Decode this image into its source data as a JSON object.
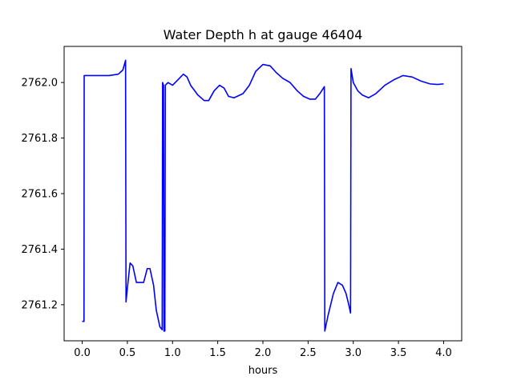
{
  "chart_data": {
    "type": "line",
    "title": "Water Depth h at gauge 46404",
    "xlabel": "hours",
    "ylabel": "",
    "xlim": [
      -0.2,
      4.2
    ],
    "ylim": [
      2761.07,
      2762.13
    ],
    "x_ticks": [
      0.0,
      0.5,
      1.0,
      1.5,
      2.0,
      2.5,
      3.0,
      3.5,
      4.0
    ],
    "x_tick_labels": [
      "0.0",
      "0.5",
      "1.0",
      "1.5",
      "2.0",
      "2.5",
      "3.0",
      "3.5",
      "4.0"
    ],
    "y_ticks": [
      2761.2,
      2761.4,
      2761.6,
      2761.8,
      2762.0
    ],
    "y_tick_labels": [
      "2761.2",
      "2761.4",
      "2761.6",
      "2761.8",
      "2762.0"
    ],
    "grid": false,
    "series": [
      {
        "name": "",
        "color": "#0000ff",
        "points": [
          [
            0.0,
            2761.14
          ],
          [
            0.02,
            2761.14
          ],
          [
            0.022,
            2762.025
          ],
          [
            0.1,
            2762.025
          ],
          [
            0.2,
            2762.025
          ],
          [
            0.3,
            2762.025
          ],
          [
            0.4,
            2762.03
          ],
          [
            0.45,
            2762.045
          ],
          [
            0.48,
            2762.08
          ],
          [
            0.485,
            2761.21
          ],
          [
            0.5,
            2761.26
          ],
          [
            0.53,
            2761.35
          ],
          [
            0.56,
            2761.34
          ],
          [
            0.6,
            2761.28
          ],
          [
            0.64,
            2761.28
          ],
          [
            0.68,
            2761.28
          ],
          [
            0.72,
            2761.33
          ],
          [
            0.75,
            2761.33
          ],
          [
            0.79,
            2761.27
          ],
          [
            0.82,
            2761.18
          ],
          [
            0.86,
            2761.12
          ],
          [
            0.885,
            2761.11
          ],
          [
            0.89,
            2762.0
          ],
          [
            0.9,
            2761.99
          ],
          [
            0.905,
            2761.105
          ],
          [
            0.915,
            2761.105
          ],
          [
            0.92,
            2761.99
          ],
          [
            0.95,
            2762.0
          ],
          [
            1.0,
            2761.99
          ],
          [
            1.06,
            2762.01
          ],
          [
            1.12,
            2762.03
          ],
          [
            1.16,
            2762.02
          ],
          [
            1.2,
            2761.99
          ],
          [
            1.28,
            2761.955
          ],
          [
            1.35,
            2761.935
          ],
          [
            1.4,
            2761.935
          ],
          [
            1.46,
            2761.97
          ],
          [
            1.52,
            2761.99
          ],
          [
            1.57,
            2761.98
          ],
          [
            1.62,
            2761.95
          ],
          [
            1.68,
            2761.945
          ],
          [
            1.78,
            2761.96
          ],
          [
            1.85,
            2761.99
          ],
          [
            1.92,
            2762.04
          ],
          [
            2.0,
            2762.065
          ],
          [
            2.08,
            2762.06
          ],
          [
            2.15,
            2762.035
          ],
          [
            2.22,
            2762.015
          ],
          [
            2.3,
            2762.0
          ],
          [
            2.38,
            2761.97
          ],
          [
            2.45,
            2761.95
          ],
          [
            2.52,
            2761.94
          ],
          [
            2.58,
            2761.94
          ],
          [
            2.63,
            2761.96
          ],
          [
            2.68,
            2761.985
          ],
          [
            2.685,
            2761.105
          ],
          [
            2.72,
            2761.16
          ],
          [
            2.78,
            2761.24
          ],
          [
            2.83,
            2761.28
          ],
          [
            2.88,
            2761.27
          ],
          [
            2.92,
            2761.24
          ],
          [
            2.95,
            2761.2
          ],
          [
            2.97,
            2761.17
          ],
          [
            2.975,
            2762.05
          ],
          [
            3.0,
            2762.0
          ],
          [
            3.05,
            2761.97
          ],
          [
            3.1,
            2761.955
          ],
          [
            3.17,
            2761.945
          ],
          [
            3.25,
            2761.96
          ],
          [
            3.35,
            2761.99
          ],
          [
            3.45,
            2762.01
          ],
          [
            3.55,
            2762.025
          ],
          [
            3.65,
            2762.02
          ],
          [
            3.75,
            2762.005
          ],
          [
            3.85,
            2761.995
          ],
          [
            3.93,
            2761.993
          ],
          [
            4.0,
            2761.995
          ]
        ]
      }
    ]
  }
}
